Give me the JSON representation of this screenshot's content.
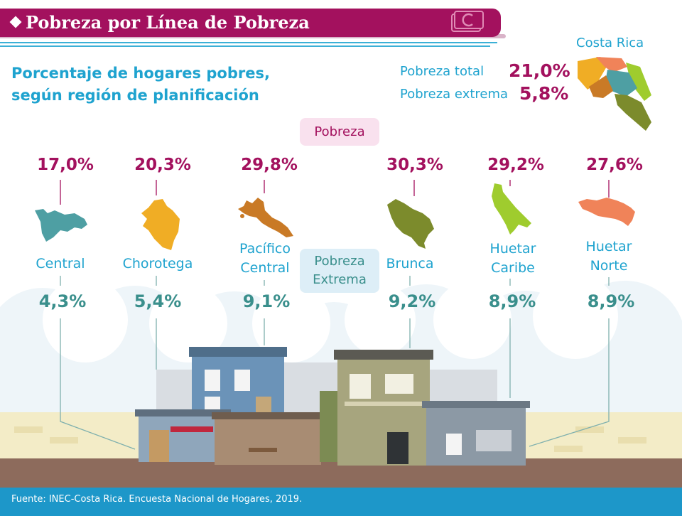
{
  "header": {
    "title": "Pobreza por Línea de Pobreza"
  },
  "subtitle": {
    "line1": "Porcentaje de hogares pobres,",
    "line2": "según región de planificación"
  },
  "national": {
    "country": "Costa Rica",
    "total_label": "Pobreza total",
    "total_value": "21,0%",
    "extreme_label": "Pobreza extrema",
    "extreme_value": "5,8%"
  },
  "legend": {
    "poverty": "Pobreza",
    "extreme_line1": "Pobreza",
    "extreme_line2": "Extrema"
  },
  "regions": [
    {
      "name_line1": "Central",
      "name_line2": "",
      "poverty": "17,0%",
      "extreme": "4,3%",
      "color": "#4e9fa3",
      "icon": "central-region-map-icon"
    },
    {
      "name_line1": "Chorotega",
      "name_line2": "",
      "poverty": "20,3%",
      "extreme": "5,4%",
      "color": "#f0ad25",
      "icon": "chorotega-region-map-icon"
    },
    {
      "name_line1": "Pacífico",
      "name_line2": "Central",
      "poverty": "29,8%",
      "extreme": "9,1%",
      "color": "#c97a26",
      "icon": "pacifico-central-region-map-icon"
    },
    {
      "name_line1": "Brunca",
      "name_line2": "",
      "poverty": "30,3%",
      "extreme": "9,2%",
      "color": "#7c8b2c",
      "icon": "brunca-region-map-icon"
    },
    {
      "name_line1": "Huetar",
      "name_line2": "Caribe",
      "poverty": "29,2%",
      "extreme": "8,9%",
      "color": "#9fcc2e",
      "icon": "huetar-caribe-region-map-icon"
    },
    {
      "name_line1": "Huetar",
      "name_line2": "Norte",
      "poverty": "27,6%",
      "extreme": "8,9%",
      "color": "#f08359",
      "icon": "huetar-norte-region-map-icon"
    }
  ],
  "colors": {
    "magenta": "#a3115e",
    "blue": "#1fa3cf",
    "teal": "#3a8f8c",
    "footer": "#1d97c9"
  },
  "footer": {
    "source": "Fuente: INEC-Costa Rica. Encuesta Nacional de Hogares, 2019."
  }
}
